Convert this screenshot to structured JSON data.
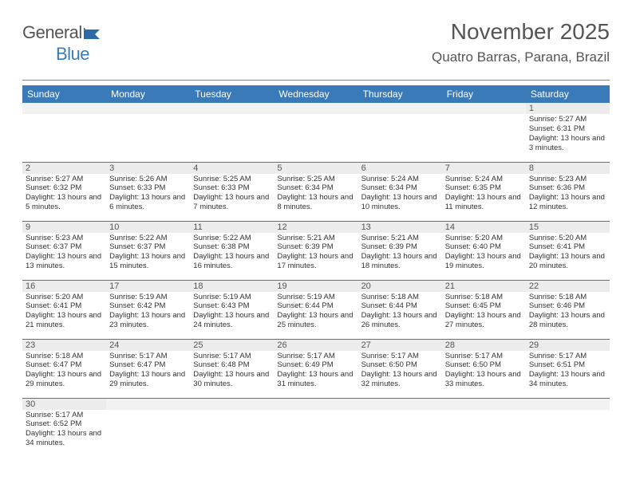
{
  "brand": {
    "name_a": "General",
    "name_b": "Blue"
  },
  "title": "November 2025",
  "subtitle": "Quatro Barras, Parana, Brazil",
  "colors": {
    "header_bg": "#3a7ab8",
    "header_text": "#ffffff",
    "row_border": "#3a7ab8",
    "daynum_bg": "#ececec",
    "blank_bg": "#f2f2f2",
    "text": "#333333",
    "title_text": "#555555"
  },
  "weekdays": [
    "Sunday",
    "Monday",
    "Tuesday",
    "Wednesday",
    "Thursday",
    "Friday",
    "Saturday"
  ],
  "days": {
    "1": {
      "sunrise": "5:27 AM",
      "sunset": "6:31 PM",
      "daylight": "13 hours and 3 minutes."
    },
    "2": {
      "sunrise": "5:27 AM",
      "sunset": "6:32 PM",
      "daylight": "13 hours and 5 minutes."
    },
    "3": {
      "sunrise": "5:26 AM",
      "sunset": "6:33 PM",
      "daylight": "13 hours and 6 minutes."
    },
    "4": {
      "sunrise": "5:25 AM",
      "sunset": "6:33 PM",
      "daylight": "13 hours and 7 minutes."
    },
    "5": {
      "sunrise": "5:25 AM",
      "sunset": "6:34 PM",
      "daylight": "13 hours and 8 minutes."
    },
    "6": {
      "sunrise": "5:24 AM",
      "sunset": "6:34 PM",
      "daylight": "13 hours and 10 minutes."
    },
    "7": {
      "sunrise": "5:24 AM",
      "sunset": "6:35 PM",
      "daylight": "13 hours and 11 minutes."
    },
    "8": {
      "sunrise": "5:23 AM",
      "sunset": "6:36 PM",
      "daylight": "13 hours and 12 minutes."
    },
    "9": {
      "sunrise": "5:23 AM",
      "sunset": "6:37 PM",
      "daylight": "13 hours and 13 minutes."
    },
    "10": {
      "sunrise": "5:22 AM",
      "sunset": "6:37 PM",
      "daylight": "13 hours and 15 minutes."
    },
    "11": {
      "sunrise": "5:22 AM",
      "sunset": "6:38 PM",
      "daylight": "13 hours and 16 minutes."
    },
    "12": {
      "sunrise": "5:21 AM",
      "sunset": "6:39 PM",
      "daylight": "13 hours and 17 minutes."
    },
    "13": {
      "sunrise": "5:21 AM",
      "sunset": "6:39 PM",
      "daylight": "13 hours and 18 minutes."
    },
    "14": {
      "sunrise": "5:20 AM",
      "sunset": "6:40 PM",
      "daylight": "13 hours and 19 minutes."
    },
    "15": {
      "sunrise": "5:20 AM",
      "sunset": "6:41 PM",
      "daylight": "13 hours and 20 minutes."
    },
    "16": {
      "sunrise": "5:20 AM",
      "sunset": "6:41 PM",
      "daylight": "13 hours and 21 minutes."
    },
    "17": {
      "sunrise": "5:19 AM",
      "sunset": "6:42 PM",
      "daylight": "13 hours and 23 minutes."
    },
    "18": {
      "sunrise": "5:19 AM",
      "sunset": "6:43 PM",
      "daylight": "13 hours and 24 minutes."
    },
    "19": {
      "sunrise": "5:19 AM",
      "sunset": "6:44 PM",
      "daylight": "13 hours and 25 minutes."
    },
    "20": {
      "sunrise": "5:18 AM",
      "sunset": "6:44 PM",
      "daylight": "13 hours and 26 minutes."
    },
    "21": {
      "sunrise": "5:18 AM",
      "sunset": "6:45 PM",
      "daylight": "13 hours and 27 minutes."
    },
    "22": {
      "sunrise": "5:18 AM",
      "sunset": "6:46 PM",
      "daylight": "13 hours and 28 minutes."
    },
    "23": {
      "sunrise": "5:18 AM",
      "sunset": "6:47 PM",
      "daylight": "13 hours and 29 minutes."
    },
    "24": {
      "sunrise": "5:17 AM",
      "sunset": "6:47 PM",
      "daylight": "13 hours and 29 minutes."
    },
    "25": {
      "sunrise": "5:17 AM",
      "sunset": "6:48 PM",
      "daylight": "13 hours and 30 minutes."
    },
    "26": {
      "sunrise": "5:17 AM",
      "sunset": "6:49 PM",
      "daylight": "13 hours and 31 minutes."
    },
    "27": {
      "sunrise": "5:17 AM",
      "sunset": "6:50 PM",
      "daylight": "13 hours and 32 minutes."
    },
    "28": {
      "sunrise": "5:17 AM",
      "sunset": "6:50 PM",
      "daylight": "13 hours and 33 minutes."
    },
    "29": {
      "sunrise": "5:17 AM",
      "sunset": "6:51 PM",
      "daylight": "13 hours and 34 minutes."
    },
    "30": {
      "sunrise": "5:17 AM",
      "sunset": "6:52 PM",
      "daylight": "13 hours and 34 minutes."
    }
  },
  "labels": {
    "sunrise": "Sunrise:",
    "sunset": "Sunset:",
    "daylight": "Daylight:"
  },
  "grid": [
    [
      null,
      null,
      null,
      null,
      null,
      null,
      "1"
    ],
    [
      "2",
      "3",
      "4",
      "5",
      "6",
      "7",
      "8"
    ],
    [
      "9",
      "10",
      "11",
      "12",
      "13",
      "14",
      "15"
    ],
    [
      "16",
      "17",
      "18",
      "19",
      "20",
      "21",
      "22"
    ],
    [
      "23",
      "24",
      "25",
      "26",
      "27",
      "28",
      "29"
    ],
    [
      "30",
      null,
      null,
      null,
      null,
      null,
      null
    ]
  ]
}
